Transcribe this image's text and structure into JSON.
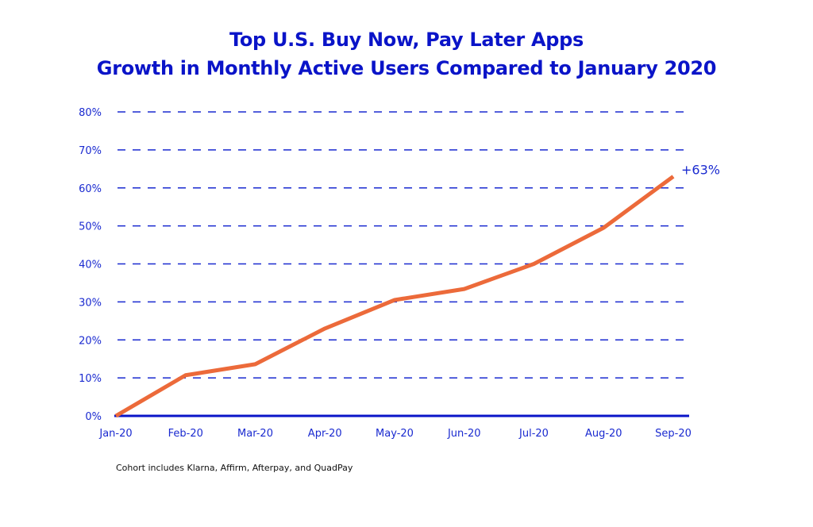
{
  "chart_data": {
    "type": "line",
    "title": "Top U.S. Buy Now, Pay Later Apps",
    "subtitle": "Growth in Monthly Active Users Compared to January 2020",
    "xlabel": "",
    "ylabel": "",
    "categories": [
      "Jan-20",
      "Feb-20",
      "Mar-20",
      "Apr-20",
      "May-20",
      "Jun-20",
      "Jul-20",
      "Aug-20",
      "Sep-20"
    ],
    "series": [
      {
        "name": "Growth in MAU vs Jan 2020",
        "values": [
          0,
          10.7,
          13.6,
          23.0,
          30.5,
          33.4,
          40.0,
          49.5,
          63.0
        ],
        "color": "#ec6a3a"
      }
    ],
    "ylim": [
      0,
      80
    ],
    "yticks": [
      0,
      10,
      20,
      30,
      40,
      50,
      60,
      70,
      80
    ],
    "ytick_labels": [
      "0%",
      "10%",
      "20%",
      "30%",
      "40%",
      "50%",
      "60%",
      "70%",
      "80%"
    ],
    "grid": true,
    "grid_style": "dashed",
    "annotations": [
      {
        "text": "+63%",
        "category": "Sep-20",
        "value": 63
      }
    ],
    "colors": {
      "text": "#0a14c8",
      "grid": "#1a2ad0",
      "axis": "#0a14c8",
      "line": "#ec6a3a"
    }
  },
  "footnote": "Cohort includes Klarna, Affirm, Afterpay, and QuadPay"
}
